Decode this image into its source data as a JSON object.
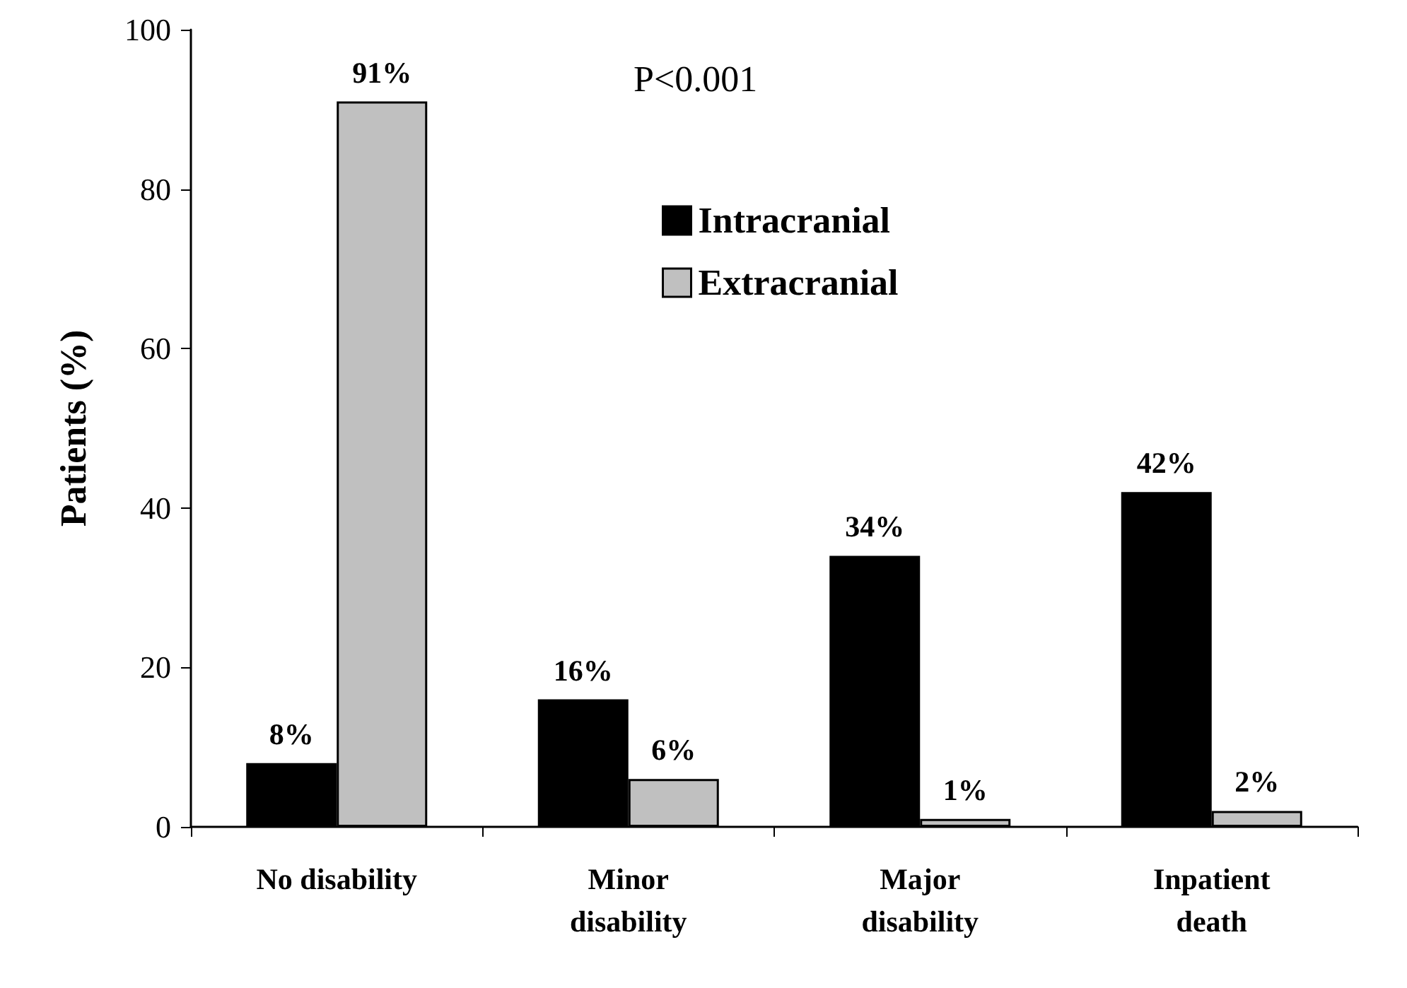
{
  "chart_data": {
    "type": "bar",
    "ylabel": "Patients (%)",
    "categories": [
      "No disability",
      "Minor\ndisability",
      "Major\ndisability",
      "Inpatient\ndeath"
    ],
    "series": [
      {
        "name": "Intracranial",
        "color": "#000000",
        "values": [
          8,
          16,
          34,
          42
        ],
        "value_labels": [
          "8%",
          "16%",
          "34%",
          "42%"
        ]
      },
      {
        "name": "Extracranial",
        "color": "#c0c0c0",
        "values": [
          91,
          6,
          1,
          2
        ],
        "value_labels": [
          "91%",
          "6%",
          "1%",
          "2%"
        ]
      }
    ],
    "ylim": [
      0,
      100
    ],
    "yticks": [
      0,
      20,
      40,
      60,
      80,
      100
    ],
    "grid": false,
    "legend": "top",
    "annotations": [
      {
        "text": "P<0.001"
      }
    ]
  }
}
